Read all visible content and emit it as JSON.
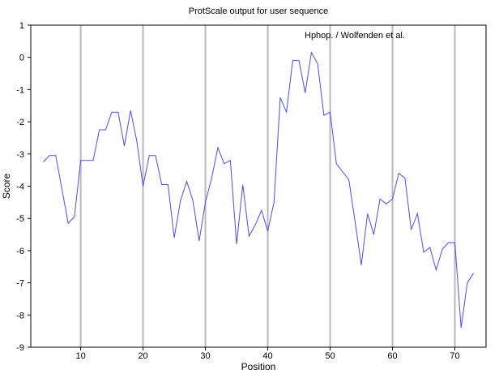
{
  "chart_data": {
    "type": "line",
    "title": "ProtScale output for user sequence",
    "xlabel": "Position",
    "ylabel": "Score",
    "annotation": "Hphop. / Wolfenden et al.",
    "xlim": [
      2,
      75
    ],
    "ylim": [
      -9,
      1
    ],
    "x_ticks": [
      10,
      20,
      30,
      40,
      50,
      60,
      70
    ],
    "y_ticks": [
      1,
      0,
      -1,
      -2,
      -3,
      -4,
      -5,
      -6,
      -7,
      -8,
      -9
    ],
    "grid": true,
    "series": [
      {
        "color": "#4c4cf0",
        "x": [
          4,
          5,
          6,
          7,
          8,
          9,
          10,
          11,
          12,
          13,
          14,
          15,
          16,
          17,
          18,
          19,
          20,
          21,
          22,
          23,
          24,
          25,
          26,
          27,
          28,
          29,
          30,
          31,
          32,
          33,
          34,
          35,
          36,
          37,
          38,
          39,
          40,
          41,
          42,
          43,
          44,
          45,
          46,
          47,
          48,
          49,
          50,
          51,
          52,
          53,
          54,
          55,
          56,
          57,
          58,
          59,
          60,
          61,
          62,
          63,
          64,
          65,
          66,
          67,
          68,
          69,
          70,
          71,
          72,
          73
        ],
        "values": [
          -3.25,
          -3.05,
          -3.05,
          -4.1,
          -5.15,
          -4.95,
          -3.2,
          -3.2,
          -3.2,
          -2.25,
          -2.25,
          -1.7,
          -1.7,
          -2.75,
          -1.65,
          -2.6,
          -4.0,
          -3.05,
          -3.05,
          -3.95,
          -3.95,
          -5.6,
          -4.45,
          -3.85,
          -4.45,
          -5.7,
          -4.5,
          -3.75,
          -2.8,
          -3.3,
          -3.2,
          -5.8,
          -3.95,
          -5.55,
          -5.2,
          -4.75,
          -5.4,
          -4.5,
          -1.25,
          -1.7,
          -0.1,
          -0.1,
          -1.1,
          0.15,
          -0.2,
          -1.8,
          -1.7,
          -3.3,
          -3.55,
          -3.8,
          -5.1,
          -6.45,
          -4.85,
          -5.5,
          -4.4,
          -4.55,
          -4.4,
          -3.6,
          -3.75,
          -5.35,
          -4.85,
          -6.05,
          -5.9,
          -6.6,
          -5.95,
          -5.75,
          -5.75,
          -8.4,
          -7.0,
          -6.7
        ]
      }
    ]
  }
}
